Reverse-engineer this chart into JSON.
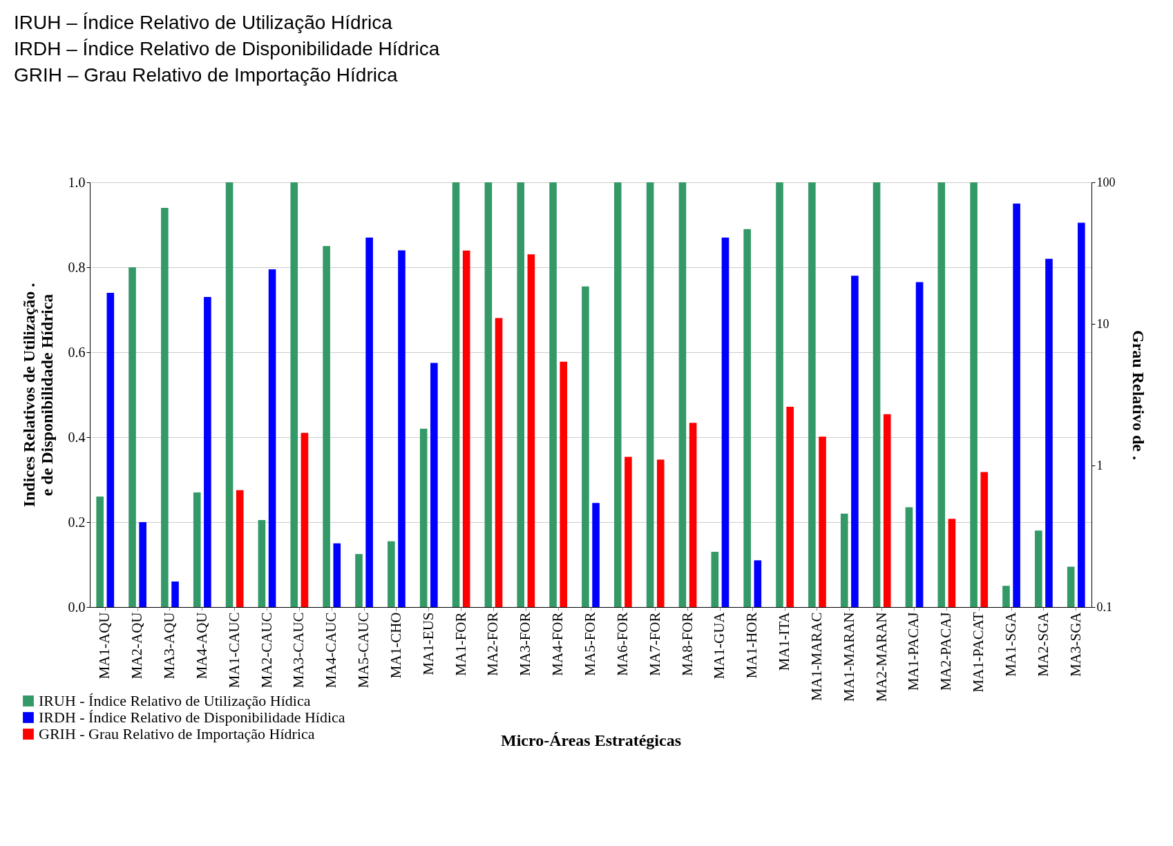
{
  "chart_data": {
    "type": "bar",
    "annotations": [
      "IRUH – Índice Relativo de Utilização Hídrica",
      "IRDH – Índice Relativo de Disponibilidade Hídrica",
      "GRIH – Grau Relativo de Importação Hídrica"
    ],
    "xlabel": "Micro-Áreas Estratégicas",
    "ylabel": "Indices Relativos de Utilização .\ne de Disponibilidade Hídrica",
    "y2label": "Grau Relativo de  .",
    "categories": [
      "MA1-AQU",
      "MA2-AQU",
      "MA3-AQU",
      "MA4-AQU",
      "MA1-CAUC",
      "MA2-CAUC",
      "MA3-CAUC",
      "MA4-CAUC",
      "MA5-CAUC",
      "MA1-CHO",
      "MA1-EUS",
      "MA1-FOR",
      "MA2-FOR",
      "MA3-FOR",
      "MA4-FOR",
      "MA5-FOR",
      "MA6-FOR",
      "MA7-FOR",
      "MA8-FOR",
      "MA1-GUA",
      "MA1-HOR",
      "MA1-ITA",
      "MA1-MARAC",
      "MA1-MARAN",
      "MA2-MARAN",
      "MA1-PACAJ",
      "MA2-PACAJ",
      "MA1-PACAT",
      "MA1-SGA",
      "MA2-SGA",
      "MA3-SGA"
    ],
    "series": [
      {
        "name": "IRUH - Índice Relativo de Utilização Hídica",
        "color": "#339966",
        "values": [
          0.26,
          0.8,
          0.94,
          0.27,
          1.0,
          0.205,
          1.0,
          0.85,
          0.125,
          0.155,
          0.42,
          1.0,
          1.0,
          1.0,
          1.0,
          0.755,
          1.0,
          1.0,
          1.0,
          0.13,
          0.89,
          1.0,
          1.0,
          0.22,
          1.0,
          0.235,
          1.0,
          1.0,
          0.05,
          0.18,
          0.095
        ]
      },
      {
        "name": "IRDH - Índice Relativo de Disponibilidade Hídica",
        "color": "#0000ff",
        "values": [
          0.74,
          0.2,
          0.06,
          0.73,
          null,
          0.795,
          null,
          0.15,
          0.87,
          0.84,
          0.575,
          null,
          null,
          null,
          null,
          0.245,
          null,
          null,
          null,
          0.87,
          0.11,
          null,
          null,
          0.78,
          null,
          0.765,
          null,
          null,
          0.95,
          0.82,
          0.905
        ]
      },
      {
        "name": "GRIH - Grau Relativo de Importação Hídrica",
        "color": "#ff0000",
        "axis": "y2",
        "values": [
          null,
          null,
          null,
          null,
          0.67,
          null,
          1.7,
          null,
          null,
          null,
          null,
          33,
          11,
          31,
          5.4,
          null,
          1.15,
          1.1,
          2.0,
          null,
          null,
          2.6,
          1.6,
          null,
          2.3,
          null,
          0.42,
          0.9,
          null,
          null,
          null
        ]
      }
    ],
    "ylim": [
      0,
      1
    ],
    "yticks": [
      {
        "value": 0,
        "label": "0.0"
      },
      {
        "value": 0.2,
        "label": "0.2"
      },
      {
        "value": 0.4,
        "label": "0.4"
      },
      {
        "value": 0.6,
        "label": "0.6"
      },
      {
        "value": 0.8,
        "label": "0.8"
      },
      {
        "value": 1,
        "label": "1.0"
      }
    ],
    "y2lim": [
      0.1,
      100
    ],
    "y2ticks": [
      0.1,
      1,
      10,
      100
    ],
    "log": "y2",
    "grid": "y",
    "legend": "bottom left"
  }
}
